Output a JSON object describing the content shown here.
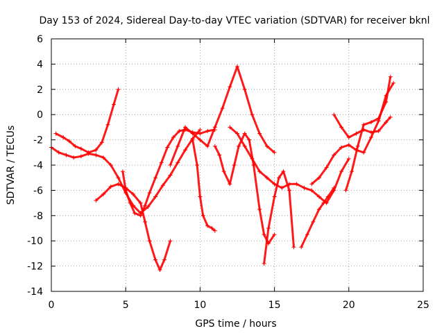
{
  "chart_data": {
    "type": "scatter",
    "title": "Day 153 of 2024, Sidereal Day-to-day VTEC variation (SDTVAR) for receiver bknl",
    "xlabel": "GPS time / hours",
    "ylabel": "SDTVAR / TECUs",
    "xlim": [
      0,
      25
    ],
    "ylim": [
      -14,
      6
    ],
    "xticks": [
      0,
      5,
      10,
      15,
      20,
      25
    ],
    "yticks": [
      -14,
      -12,
      -10,
      -8,
      -6,
      -4,
      -2,
      0,
      2,
      4,
      6
    ],
    "grid": true,
    "marker": "plus",
    "color": "#ff0000",
    "series": [
      {
        "name": "s1",
        "x": [
          0.0,
          0.5,
          1.0,
          1.5,
          2.0,
          2.5,
          3.0,
          3.5,
          4.0,
          4.5,
          5.0,
          5.5,
          6.0,
          6.5,
          7.0,
          7.5,
          8.0,
          8.5,
          9.0,
          9.5,
          10.0
        ],
        "y": [
          -2.6,
          -3.0,
          -3.2,
          -3.4,
          -3.3,
          -3.1,
          -3.2,
          -3.4,
          -4.0,
          -5.0,
          -6.2,
          -7.2,
          -7.8,
          -7.3,
          -6.5,
          -5.6,
          -4.8,
          -3.8,
          -2.8,
          -1.9,
          -1.2
        ]
      },
      {
        "name": "s2",
        "x": [
          0.3,
          0.8,
          1.2,
          1.6,
          2.0,
          2.5,
          3.0,
          3.4,
          3.8,
          4.2,
          4.5
        ],
        "y": [
          -1.5,
          -1.8,
          -2.1,
          -2.5,
          -2.7,
          -3.0,
          -2.8,
          -2.2,
          -0.8,
          0.8,
          2.0
        ]
      },
      {
        "name": "s3",
        "x": [
          3.0,
          3.5,
          4.0,
          4.5,
          5.0,
          5.5,
          6.0,
          6.3,
          6.6,
          7.0,
          7.3,
          7.6,
          8.0
        ],
        "y": [
          -6.8,
          -6.3,
          -5.7,
          -5.5,
          -5.8,
          -6.3,
          -7.0,
          -8.5,
          -10.0,
          -11.5,
          -12.3,
          -11.5,
          -10.0
        ]
      },
      {
        "name": "s4",
        "x": [
          4.8,
          5.0,
          5.3,
          5.6,
          6.0,
          6.3,
          6.6,
          7.0,
          7.4,
          7.8,
          8.2,
          8.6,
          9.0,
          9.5,
          10.0,
          10.5,
          11.0
        ],
        "y": [
          -4.5,
          -6.0,
          -7.0,
          -7.8,
          -8.0,
          -7.2,
          -6.2,
          -5.0,
          -3.8,
          -2.6,
          -1.8,
          -1.3,
          -1.2,
          -1.4,
          -1.5,
          -1.3,
          -1.2
        ]
      },
      {
        "name": "s5",
        "x": [
          8.0,
          8.5,
          9.0,
          9.5,
          10.0,
          10.5,
          11.0,
          11.5,
          12.0,
          12.5,
          13.0,
          13.5,
          14.0,
          14.5,
          15.0
        ],
        "y": [
          -4.0,
          -2.5,
          -1.0,
          -1.5,
          -2.0,
          -2.5,
          -1.0,
          0.5,
          2.2,
          3.8,
          2.0,
          0.0,
          -1.5,
          -2.5,
          -3.0
        ]
      },
      {
        "name": "s6",
        "x": [
          9.5,
          9.8,
          10.0,
          10.2,
          10.5,
          10.8,
          11.0
        ],
        "y": [
          -2.0,
          -4.0,
          -6.5,
          -8.0,
          -8.8,
          -9.0,
          -9.2
        ]
      },
      {
        "name": "s7",
        "x": [
          11.0,
          11.3,
          11.6,
          12.0,
          12.3,
          12.6,
          13.0,
          13.3,
          13.6,
          14.0,
          14.3,
          14.6,
          15.0
        ],
        "y": [
          -2.5,
          -3.2,
          -4.5,
          -5.5,
          -4.0,
          -2.5,
          -1.5,
          -2.0,
          -4.0,
          -7.5,
          -9.5,
          -10.2,
          -9.5
        ]
      },
      {
        "name": "s8",
        "x": [
          12.0,
          12.5,
          13.0,
          13.5,
          14.0,
          14.5,
          15.0,
          15.5,
          16.0,
          16.5,
          17.0,
          17.5,
          18.0,
          18.5,
          19.0,
          19.5,
          20.0
        ],
        "y": [
          -1.0,
          -1.5,
          -2.5,
          -3.5,
          -4.5,
          -5.0,
          -5.5,
          -5.8,
          -5.5,
          -5.5,
          -5.8,
          -6.0,
          -6.5,
          -7.0,
          -6.0,
          -4.5,
          -3.5
        ]
      },
      {
        "name": "s9",
        "x": [
          14.3,
          14.6,
          15.0,
          15.3,
          15.6,
          16.0,
          16.3
        ],
        "y": [
          -11.8,
          -9.0,
          -6.5,
          -5.0,
          -4.5,
          -6.0,
          -10.5
        ]
      },
      {
        "name": "s10",
        "x": [
          16.8,
          17.2,
          17.6,
          18.0,
          18.3,
          18.6,
          19.0
        ],
        "y": [
          -10.5,
          -9.5,
          -8.5,
          -7.5,
          -7.0,
          -6.5,
          -5.8
        ]
      },
      {
        "name": "s11",
        "x": [
          17.5,
          18.0,
          18.5,
          19.0,
          19.5,
          20.0,
          20.5,
          21.0,
          21.5,
          22.0,
          22.5,
          23.0
        ],
        "y": [
          -5.5,
          -5.0,
          -4.2,
          -3.2,
          -2.6,
          -2.4,
          -2.8,
          -3.0,
          -1.8,
          -0.5,
          1.5,
          2.5
        ]
      },
      {
        "name": "s12",
        "x": [
          19.8,
          20.2,
          20.6,
          21.0,
          21.5,
          22.0,
          22.5,
          22.8
        ],
        "y": [
          -6.0,
          -4.5,
          -2.5,
          -0.8,
          -0.6,
          -0.3,
          1.0,
          3.0
        ]
      },
      {
        "name": "s13",
        "x": [
          19.0,
          19.5,
          20.0,
          20.5,
          21.0,
          21.5,
          22.0,
          22.5,
          22.8
        ],
        "y": [
          0.0,
          -1.0,
          -1.8,
          -1.5,
          -1.2,
          -1.4,
          -1.3,
          -0.6,
          -0.2
        ]
      }
    ]
  }
}
